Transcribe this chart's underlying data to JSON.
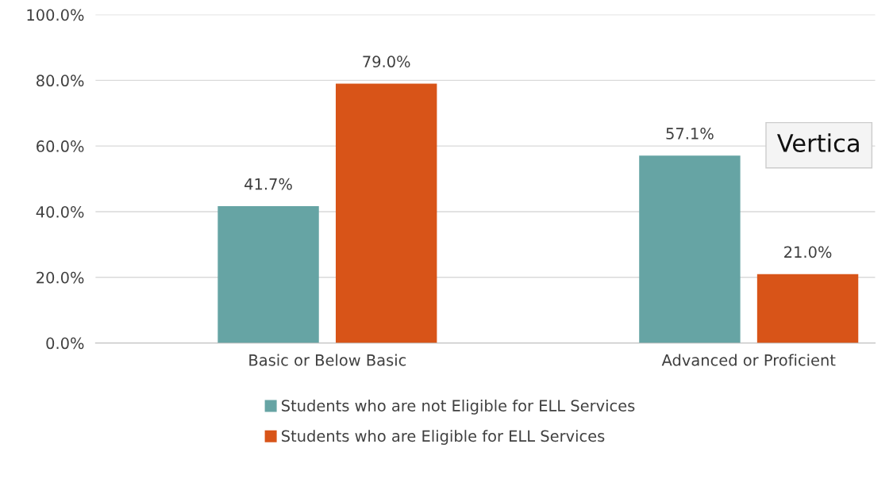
{
  "chart_data": {
    "type": "bar",
    "categories": [
      "Basic or Below Basic",
      "Advanced or Proficient"
    ],
    "series": [
      {
        "name": "Students who are not Eligible for ELL Services",
        "color": "#66a4a4",
        "values": [
          41.7,
          57.1
        ],
        "value_labels": [
          "41.7%",
          "57.1%"
        ]
      },
      {
        "name": "Students who are Eligible for ELL Services",
        "color": "#d85418",
        "values": [
          79.0,
          21.0
        ],
        "value_labels": [
          "79.0%",
          "21.0%"
        ]
      }
    ],
    "ylim": [
      0,
      100
    ],
    "yticks": [
      {
        "value": 0,
        "label": "0.0%"
      },
      {
        "value": 20,
        "label": "20.0%"
      },
      {
        "value": 40,
        "label": "40.0%"
      },
      {
        "value": 60,
        "label": "60.0%"
      },
      {
        "value": 80,
        "label": "80.0%"
      },
      {
        "value": 100,
        "label": "100.0%"
      }
    ],
    "grid": "y",
    "legend": "bottom",
    "annotations": [
      "Vertica"
    ]
  }
}
